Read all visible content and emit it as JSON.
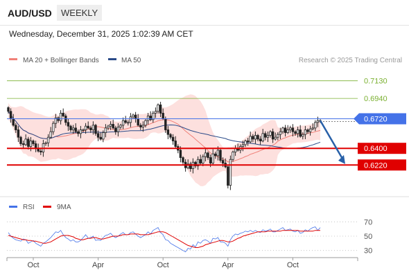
{
  "header": {
    "symbol": "AUD/USD",
    "period": "WEEKLY",
    "datetime": "Wednesday, December 31, 2025 1:02:39 AM CET"
  },
  "colors": {
    "price_line": "#4472e8",
    "resistance": "#7ab030",
    "support": "#e00000",
    "candle": "#222222",
    "bollinger_fill": "#fde0de",
    "ma20": "#f08078",
    "ma50": "#2a4a88",
    "rsi": "#4472e8",
    "rsi_ma": "#e00000",
    "arrow": "#2860a8"
  },
  "chart_data": [
    {
      "type": "candlestick",
      "legend": [
        {
          "label": "MA 20 + Bollinger Bands",
          "color": "#f08078"
        },
        {
          "label": "MA 50",
          "color": "#2a4a88"
        }
      ],
      "legend_placement": "top-left",
      "watermark": "Research © 2025 Trading Central",
      "ylim": [
        0.587,
        0.733
      ],
      "x_ticks": [
        {
          "label": "Oct",
          "index": 10
        },
        {
          "label": "Apr",
          "index": 36
        },
        {
          "label": "Oct",
          "index": 62
        },
        {
          "label": "Apr",
          "index": 88
        },
        {
          "label": "Oct",
          "index": 114
        }
      ],
      "levels": [
        {
          "value": 0.713,
          "label": "0.7130",
          "kind": "resistance"
        },
        {
          "value": 0.694,
          "label": "0.6940",
          "kind": "resistance"
        },
        {
          "value": 0.672,
          "label": "0.6720",
          "kind": "current"
        },
        {
          "value": 0.64,
          "label": "0.6400",
          "kind": "support"
        },
        {
          "value": 0.622,
          "label": "0.6220",
          "kind": "support"
        }
      ],
      "forecast": {
        "from_index": 125,
        "from": 0.67,
        "to_index": 135,
        "to": 0.623
      },
      "candles_close": [
        0.68,
        0.672,
        0.665,
        0.66,
        0.652,
        0.645,
        0.644,
        0.65,
        0.642,
        0.648,
        0.645,
        0.64,
        0.637,
        0.636,
        0.645,
        0.646,
        0.652,
        0.658,
        0.667,
        0.673,
        0.67,
        0.678,
        0.675,
        0.668,
        0.664,
        0.66,
        0.662,
        0.658,
        0.656,
        0.66,
        0.66,
        0.664,
        0.662,
        0.66,
        0.665,
        0.656,
        0.652,
        0.65,
        0.657,
        0.662,
        0.664,
        0.666,
        0.662,
        0.658,
        0.663,
        0.665,
        0.67,
        0.668,
        0.668,
        0.674,
        0.676,
        0.672,
        0.665,
        0.663,
        0.665,
        0.67,
        0.675,
        0.671,
        0.678,
        0.68,
        0.687,
        0.678,
        0.672,
        0.66,
        0.655,
        0.652,
        0.648,
        0.642,
        0.638,
        0.63,
        0.625,
        0.619,
        0.623,
        0.618,
        0.625,
        0.621,
        0.628,
        0.624,
        0.631,
        0.635,
        0.63,
        0.624,
        0.634,
        0.632,
        0.638,
        0.627,
        0.624,
        0.62,
        0.6,
        0.628,
        0.636,
        0.64,
        0.638,
        0.642,
        0.644,
        0.648,
        0.647,
        0.653,
        0.65,
        0.654,
        0.65,
        0.648,
        0.656,
        0.652,
        0.654,
        0.658,
        0.65,
        0.652,
        0.655,
        0.658,
        0.662,
        0.657,
        0.66,
        0.662,
        0.658,
        0.656,
        0.66,
        0.653,
        0.655,
        0.66,
        0.658,
        0.661,
        0.662,
        0.668,
        0.67,
        0.67
      ]
    },
    {
      "type": "line",
      "legend": [
        {
          "label": "RSI",
          "color": "#4472e8"
        },
        {
          "label": "9MA",
          "color": "#e00000"
        }
      ],
      "ylim": [
        20,
        80
      ],
      "y_ticks": [
        30,
        50,
        70
      ],
      "series": [
        {
          "name": "RSI",
          "values": [
            55,
            50,
            47,
            45,
            44,
            43,
            46,
            45,
            40,
            42,
            44,
            40,
            38,
            36,
            40,
            42,
            45,
            48,
            52,
            56,
            55,
            58,
            52,
            48,
            46,
            43,
            45,
            42,
            42,
            44,
            48,
            52,
            47,
            48,
            50,
            44,
            45,
            44,
            48,
            51,
            52,
            54,
            50,
            48,
            50,
            53,
            55,
            52,
            52,
            55,
            56,
            53,
            50,
            48,
            50,
            52,
            56,
            53,
            58,
            60,
            62,
            55,
            52,
            45,
            44,
            40,
            38,
            36,
            34,
            32,
            30,
            28,
            33,
            32,
            38,
            35,
            42,
            40,
            44,
            45,
            43,
            40,
            47,
            46,
            48,
            42,
            42,
            40,
            36,
            45,
            50,
            53,
            52,
            54,
            55,
            57,
            56,
            58,
            56,
            58,
            56,
            55,
            59,
            57,
            58,
            60,
            56,
            56,
            58,
            60,
            62,
            58,
            59,
            60,
            57,
            56,
            58,
            54,
            55,
            59,
            57,
            60,
            62,
            63,
            58,
            62
          ]
        },
        {
          "name": "9MA",
          "values": [
            51,
            50,
            49,
            48,
            47,
            46,
            45,
            45,
            44,
            44,
            43,
            43,
            42,
            41,
            40,
            40,
            41,
            42,
            44,
            46,
            48,
            50,
            51,
            51,
            51,
            50,
            49,
            47,
            46,
            45,
            45,
            46,
            47,
            47,
            48,
            48,
            47,
            46,
            46,
            47,
            48,
            49,
            50,
            50,
            50,
            51,
            52,
            52,
            52,
            53,
            53,
            53,
            53,
            52,
            52,
            52,
            52,
            53,
            54,
            55,
            56,
            56,
            56,
            55,
            53,
            51,
            49,
            47,
            45,
            43,
            41,
            39,
            37,
            36,
            35,
            34,
            34,
            35,
            36,
            38,
            39,
            40,
            41,
            42,
            43,
            44,
            44,
            43,
            42,
            42,
            43,
            45,
            47,
            48,
            50,
            51,
            52,
            53,
            54,
            55,
            56,
            56,
            56,
            56,
            57,
            57,
            57,
            57,
            57,
            57,
            58,
            58,
            58,
            58,
            58,
            58,
            58,
            57,
            57,
            57,
            57,
            57,
            57,
            58,
            58,
            58
          ]
        }
      ],
      "x_ticks": [
        {
          "label": "Oct",
          "index": 10
        },
        {
          "label": "Apr",
          "index": 36
        },
        {
          "label": "Oct",
          "index": 62
        },
        {
          "label": "Apr",
          "index": 88
        },
        {
          "label": "Oct",
          "index": 114
        }
      ]
    }
  ]
}
